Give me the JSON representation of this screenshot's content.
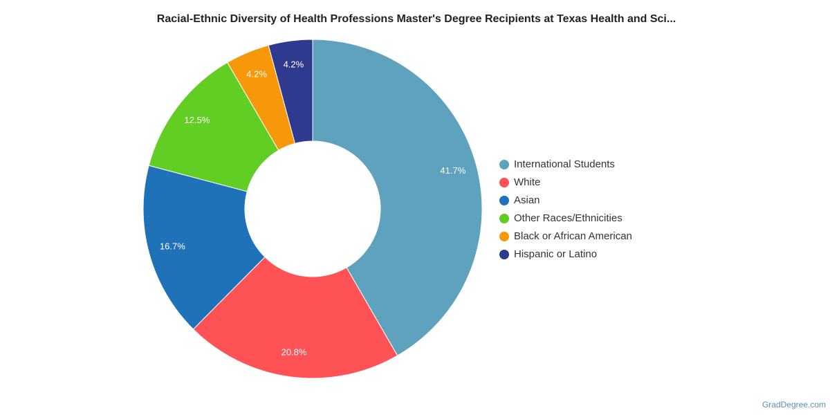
{
  "chart_data": {
    "type": "donut",
    "title": "Racial-Ethnic Diversity of Health Professions Master's Degree Recipients at Texas Health and Sci...",
    "categories": [
      "International Students",
      "White",
      "Asian",
      "Other Races/Ethnicities",
      "Black or African American",
      "Hispanic or Latino"
    ],
    "values": [
      41.7,
      20.8,
      16.7,
      12.5,
      4.2,
      4.2
    ],
    "value_labels": [
      "41.7%",
      "20.8%",
      "16.7%",
      "12.5%",
      "4.2%",
      "4.2%"
    ],
    "colors": [
      "#5fa2be",
      "#fe5256",
      "#1f72b8",
      "#62cd23",
      "#f7980a",
      "#2f3a8f"
    ],
    "legend": "right",
    "source": "GradDegree.com"
  }
}
